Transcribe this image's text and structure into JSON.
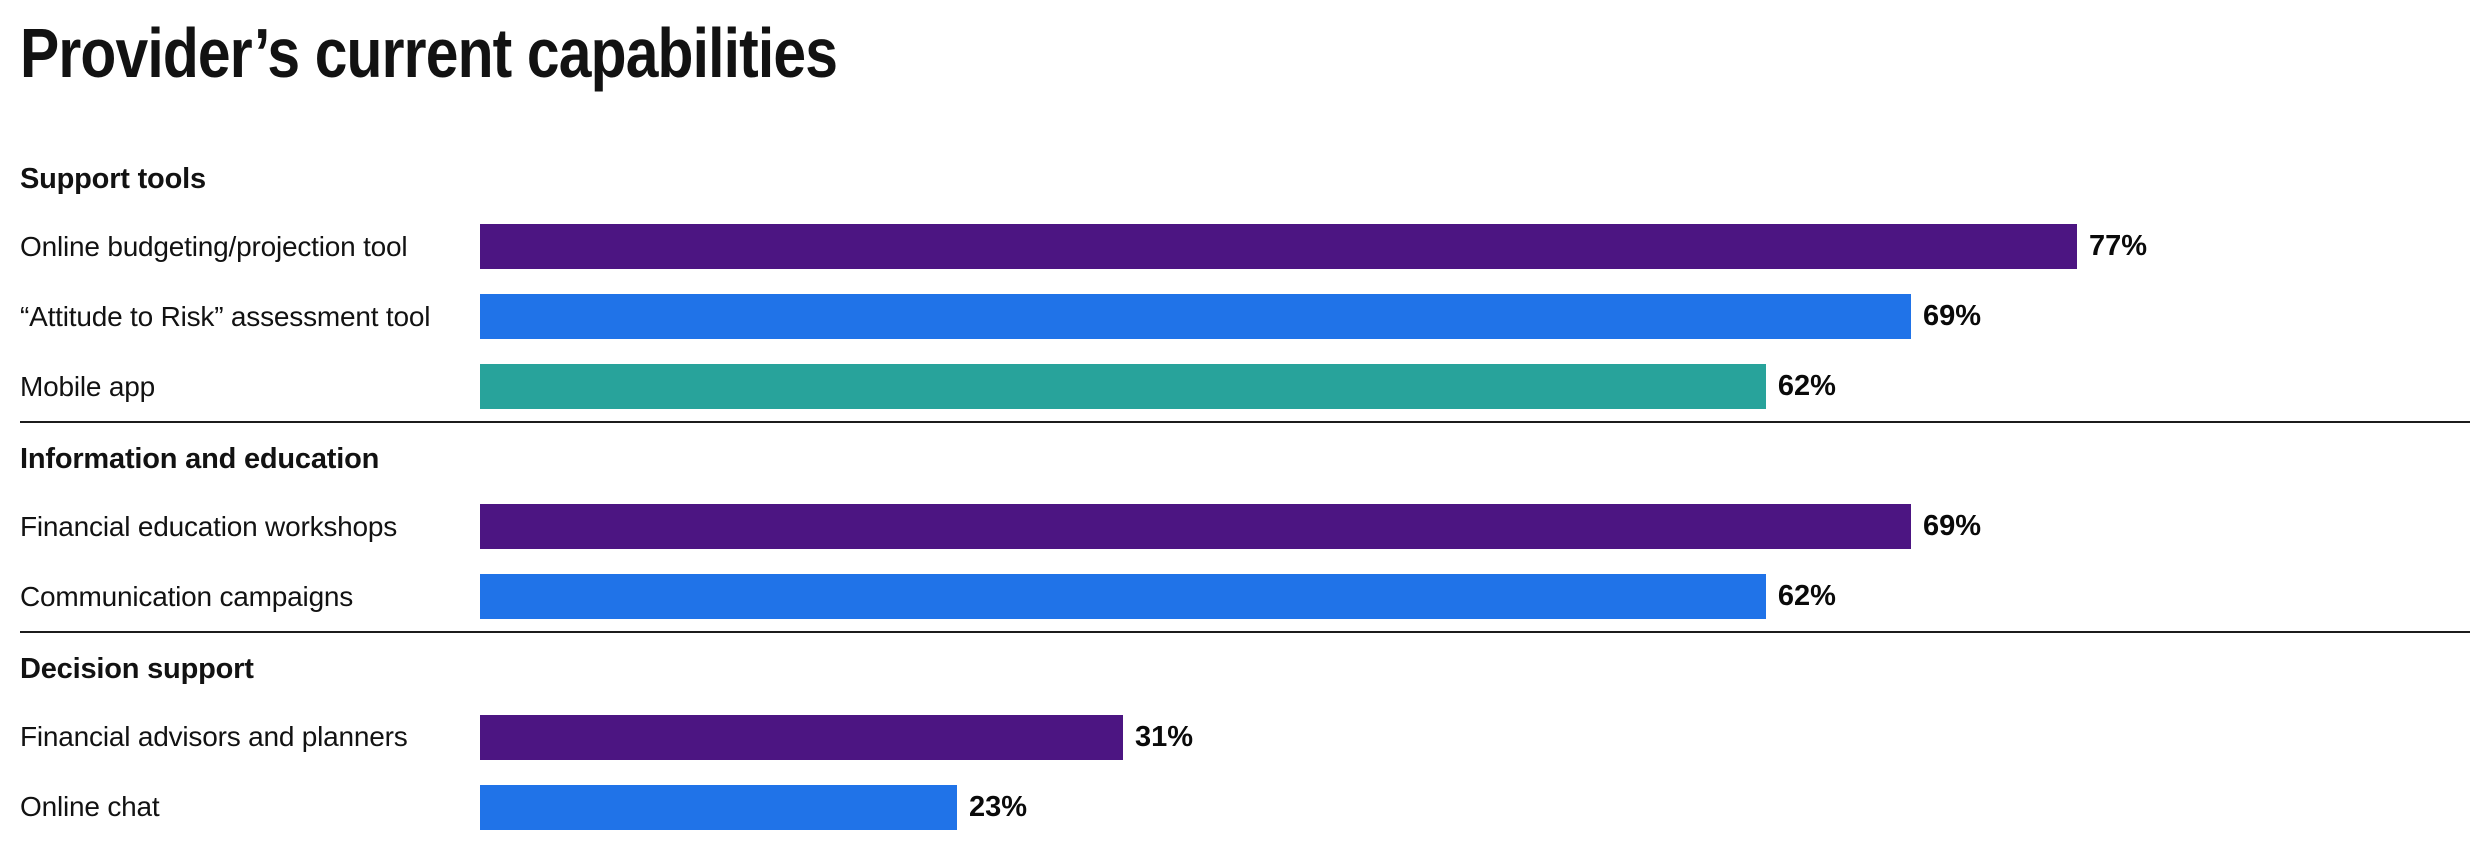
{
  "page": {
    "title": "Provider’s current capabilities"
  },
  "colors": {
    "purple": "#4C1582",
    "blue": "#2073E8",
    "teal": "#28A39B",
    "divider": "#1C1C1C",
    "text": "#121212"
  },
  "chart_data": {
    "type": "bar",
    "orientation": "horizontal",
    "title": "Provider’s current capabilities",
    "value_unit": "%",
    "xlim": [
      0,
      100
    ],
    "grid": false,
    "legend": false,
    "sections": [
      {
        "heading": "Support tools",
        "rows": [
          {
            "label": "Online budgeting/projection tool",
            "value": 77,
            "value_label": "77%",
            "color": "purple"
          },
          {
            "label": "“Attitude to Risk” assessment tool",
            "value": 69,
            "value_label": "69%",
            "color": "blue"
          },
          {
            "label": "Mobile app",
            "value": 62,
            "value_label": "62%",
            "color": "teal"
          }
        ]
      },
      {
        "heading": "Information and education",
        "rows": [
          {
            "label": "Financial education workshops",
            "value": 69,
            "value_label": "69%",
            "color": "purple"
          },
          {
            "label": "Communication campaigns",
            "value": 62,
            "value_label": "62%",
            "color": "blue"
          }
        ]
      },
      {
        "heading": "Decision support",
        "rows": [
          {
            "label": "Financial advisors and planners",
            "value": 31,
            "value_label": "31%",
            "color": "purple"
          },
          {
            "label": "Online chat",
            "value": 23,
            "value_label": "23%",
            "color": "blue"
          }
        ]
      }
    ]
  }
}
